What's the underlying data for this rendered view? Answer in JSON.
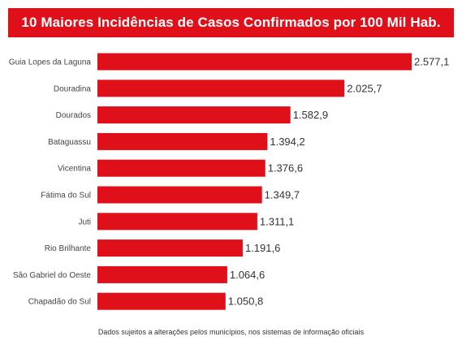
{
  "title": "10 Maiores Incidências de Casos Confirmados por 100 Mil Hab.",
  "footnote": "Dados sujeitos a alterações pelos municípios, nos sistemas de informação oficiais",
  "colors": {
    "accent": "#e0101a",
    "bar": "#e0101a",
    "label_text": "#444444",
    "value_text": "#333333"
  },
  "chart_data": {
    "type": "bar",
    "orientation": "horizontal",
    "categories": [
      "Guia Lopes da Laguna",
      "Douradina",
      "Dourados",
      "Bataguassu",
      "Vicentina",
      "Fátima do Sul",
      "Juti",
      "Rio Brilhante",
      "São Gabriel do Oeste",
      "Chapadão do Sul"
    ],
    "values": [
      2577.1,
      2025.7,
      1582.9,
      1394.2,
      1376.6,
      1349.7,
      1311.1,
      1191.6,
      1064.6,
      1050.8
    ],
    "value_labels": [
      "2.577,1",
      "2.025,7",
      "1.582,9",
      "1.394,2",
      "1.376,6",
      "1.349,7",
      "1.311,1",
      "1.191,6",
      "1.064,6",
      "1.050,8"
    ],
    "xlim": [
      0,
      2577.1
    ],
    "grid": false,
    "legend": "none"
  }
}
